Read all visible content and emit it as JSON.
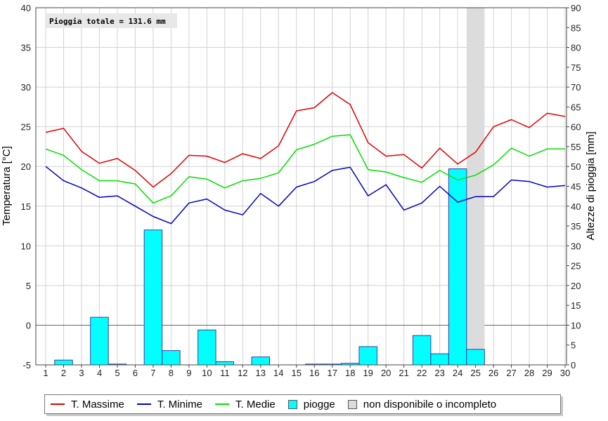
{
  "chart_data": {
    "type": "line",
    "annotation": "Pioggia totale = 131.6 mm",
    "ylabel_left": "Temperatura [°C]",
    "ylabel_right": "Altezze di pioggia [mm]",
    "ylim_left": [
      -5,
      40
    ],
    "ylim_right": [
      0,
      90
    ],
    "yticks_left": [
      "-5",
      "0",
      "5",
      "10",
      "15",
      "20",
      "25",
      "30",
      "35",
      "40"
    ],
    "yticks_right": [
      "0",
      "5",
      "10",
      "15",
      "20",
      "25",
      "30",
      "35",
      "40",
      "45",
      "50",
      "55",
      "60",
      "65",
      "70",
      "75",
      "80",
      "85",
      "90"
    ],
    "x": [
      "1",
      "2",
      "3",
      "4",
      "5",
      "6",
      "7",
      "8",
      "9",
      "10",
      "11",
      "12",
      "13",
      "14",
      "15",
      "16",
      "17",
      "18",
      "19",
      "20",
      "21",
      "22",
      "23",
      "24",
      "25",
      "26",
      "27",
      "28",
      "29",
      "30"
    ],
    "grid": true,
    "legend_position": "bottom",
    "series": [
      {
        "name": "T. Massime",
        "color": "#e00000",
        "axis": "left",
        "values": [
          24.3,
          24.8,
          21.9,
          20.4,
          21.0,
          19.5,
          17.4,
          19.1,
          21.4,
          21.3,
          20.5,
          21.6,
          21.0,
          22.6,
          27.0,
          27.4,
          29.3,
          27.8,
          23.0,
          21.3,
          21.5,
          19.8,
          22.3,
          20.3,
          21.8,
          25.0,
          25.9,
          24.9,
          26.7,
          26.3
        ]
      },
      {
        "name": "T. Minime",
        "color": "#0000c8",
        "axis": "left",
        "values": [
          20.0,
          18.2,
          17.3,
          16.1,
          16.3,
          15.0,
          13.7,
          12.8,
          15.4,
          15.9,
          14.5,
          13.9,
          16.6,
          15.0,
          17.4,
          18.1,
          19.5,
          19.9,
          16.3,
          17.7,
          14.5,
          15.4,
          17.5,
          15.5,
          16.2,
          16.2,
          18.3,
          18.1,
          17.4,
          17.6
        ]
      },
      {
        "name": "T. Medie",
        "color": "#00e000",
        "axis": "left",
        "values": [
          22.2,
          21.4,
          19.6,
          18.2,
          18.2,
          17.8,
          15.4,
          16.3,
          18.7,
          18.4,
          17.3,
          18.2,
          18.5,
          19.2,
          22.1,
          22.8,
          23.8,
          24.0,
          19.6,
          19.3,
          18.6,
          18.0,
          19.5,
          18.3,
          18.9,
          20.2,
          22.3,
          21.3,
          22.2,
          22.2
        ]
      }
    ],
    "rain": {
      "name": "piogge",
      "color": "#00ffff",
      "axis": "right",
      "values": [
        0,
        1.2,
        0,
        12.0,
        0.2,
        0,
        34.0,
        3.6,
        0,
        8.8,
        0.8,
        0,
        2.0,
        0,
        0,
        0.2,
        0.2,
        0.4,
        4.6,
        0,
        0,
        7.4,
        2.8,
        49.4,
        3.9,
        0,
        0,
        0,
        0,
        0
      ]
    },
    "unavailable": {
      "name": "non disponibile o incompleto",
      "color": "#dcdcdc",
      "days": [
        "25"
      ]
    }
  }
}
